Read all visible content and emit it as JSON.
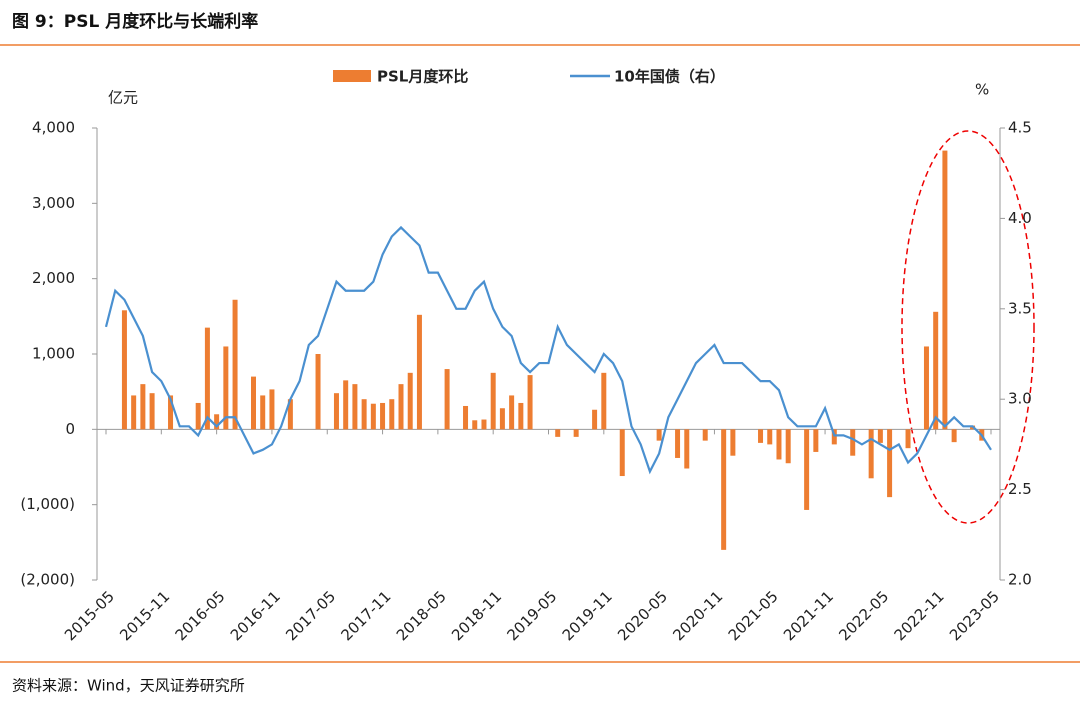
{
  "header": {
    "title": "图 9：PSL 月度环比与长端利率"
  },
  "source": "资料来源：Wind，天风证券研究所",
  "chart_data": {
    "type": "bar_line",
    "y_label": "亿元",
    "y2_label": "%",
    "categories": [
      "2015-05",
      null,
      null,
      null,
      null,
      null,
      "2015-11",
      null,
      null,
      null,
      null,
      null,
      "2016-05",
      null,
      null,
      null,
      null,
      null,
      "2016-11",
      null,
      null,
      null,
      null,
      null,
      "2017-05",
      null,
      null,
      null,
      null,
      null,
      "2017-11",
      null,
      null,
      null,
      null,
      null,
      "2018-05",
      null,
      null,
      null,
      null,
      null,
      "2018-11",
      null,
      null,
      null,
      null,
      null,
      "2019-05",
      null,
      null,
      null,
      null,
      null,
      "2019-11",
      null,
      null,
      null,
      null,
      null,
      "2020-05",
      null,
      null,
      null,
      null,
      null,
      "2020-11",
      null,
      null,
      null,
      null,
      null,
      "2021-05",
      null,
      null,
      null,
      null,
      null,
      "2021-11",
      null,
      null,
      null,
      null,
      null,
      "2022-05",
      null,
      null,
      null,
      null,
      null,
      "2022-11",
      null,
      null,
      null,
      null,
      null,
      "2023-05"
    ],
    "series": [
      {
        "name": "PSL月度环比",
        "type": "bar",
        "color": "#ed7d31",
        "axis": "y",
        "values": [
          0,
          0,
          1580,
          450,
          600,
          480,
          0,
          450,
          0,
          0,
          350,
          1350,
          200,
          1100,
          1720,
          0,
          700,
          450,
          530,
          0,
          400,
          0,
          0,
          1000,
          0,
          480,
          650,
          600,
          400,
          340,
          350,
          400,
          600,
          750,
          1520,
          0,
          0,
          800,
          0,
          310,
          120,
          130,
          750,
          280,
          450,
          350,
          720,
          0,
          0,
          -100,
          0,
          -100,
          0,
          260,
          750,
          0,
          -620,
          0,
          0,
          0,
          -150,
          0,
          -380,
          -520,
          0,
          -150,
          0,
          -1600,
          -350,
          0,
          0,
          -180,
          -200,
          -400,
          -450,
          0,
          -1070,
          -300,
          0,
          -200,
          0,
          -350,
          0,
          -650,
          -180,
          -900,
          0,
          -250,
          0,
          1100,
          1560,
          3700,
          -170,
          0,
          50,
          -150,
          0
        ]
      },
      {
        "name": "10年国债（右）",
        "type": "line",
        "color": "#4a90d0",
        "axis": "y2",
        "values": [
          3.4,
          3.6,
          3.55,
          3.45,
          3.35,
          3.15,
          3.1,
          3.0,
          2.85,
          2.85,
          2.8,
          2.9,
          2.85,
          2.9,
          2.9,
          2.8,
          2.7,
          2.72,
          2.75,
          2.85,
          3.0,
          3.1,
          3.3,
          3.35,
          3.5,
          3.65,
          3.6,
          3.6,
          3.6,
          3.65,
          3.8,
          3.9,
          3.95,
          3.9,
          3.85,
          3.7,
          3.7,
          3.6,
          3.5,
          3.5,
          3.6,
          3.65,
          3.5,
          3.4,
          3.35,
          3.2,
          3.15,
          3.2,
          3.2,
          3.4,
          3.3,
          3.25,
          3.2,
          3.15,
          3.25,
          3.2,
          3.1,
          2.85,
          2.75,
          2.6,
          2.7,
          2.9,
          3.0,
          3.1,
          3.2,
          3.25,
          3.3,
          3.2,
          3.2,
          3.2,
          3.15,
          3.1,
          3.1,
          3.05,
          2.9,
          2.85,
          2.85,
          2.85,
          2.95,
          2.8,
          2.8,
          2.78,
          2.75,
          2.78,
          2.75,
          2.72,
          2.75,
          2.65,
          2.7,
          2.8,
          2.9,
          2.85,
          2.9,
          2.85,
          2.85,
          2.8,
          2.72
        ]
      }
    ],
    "ylim": [
      -2000,
      4000
    ],
    "yticks": [
      {
        "value": -2000,
        "label": "(2,000)"
      },
      {
        "value": -1000,
        "label": "(1,000)"
      },
      0,
      {
        "value": 1000,
        "label": "1,000"
      },
      {
        "value": 2000,
        "label": "2,000"
      },
      {
        "value": 3000,
        "label": "3,000"
      },
      {
        "value": 4000,
        "label": "4,000"
      }
    ],
    "y2lim": [
      2.0,
      4.5
    ],
    "y2ticks": [
      {
        "value": 2,
        "label": "2.0"
      },
      2.5,
      {
        "value": 3,
        "label": "3.0"
      },
      3.5,
      {
        "value": 4,
        "label": "4.0"
      },
      4.5
    ],
    "legend": "top"
  }
}
